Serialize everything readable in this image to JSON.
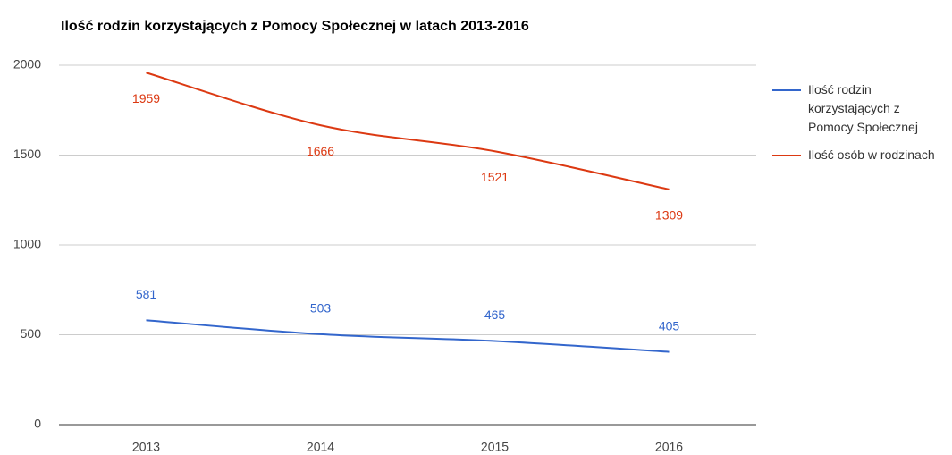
{
  "chart_data": {
    "type": "line",
    "title": "Ilość rodzin korzystających z Pomocy Społecznej w latach 2013-2016",
    "categories": [
      "2013",
      "2014",
      "2015",
      "2016"
    ],
    "series": [
      {
        "name": "Ilość rodzin korzystających z Pomocy Społecznej",
        "color": "#3366cc",
        "values": [
          581,
          503,
          465,
          405
        ]
      },
      {
        "name": "Ilość osób w rodzinach",
        "color": "#dc3912",
        "values": [
          1959,
          1666,
          1521,
          1309
        ]
      }
    ],
    "ylim": [
      0,
      2000
    ],
    "yticks": [
      0,
      500,
      1000,
      1500,
      2000
    ],
    "grid": true,
    "legend": "right"
  }
}
